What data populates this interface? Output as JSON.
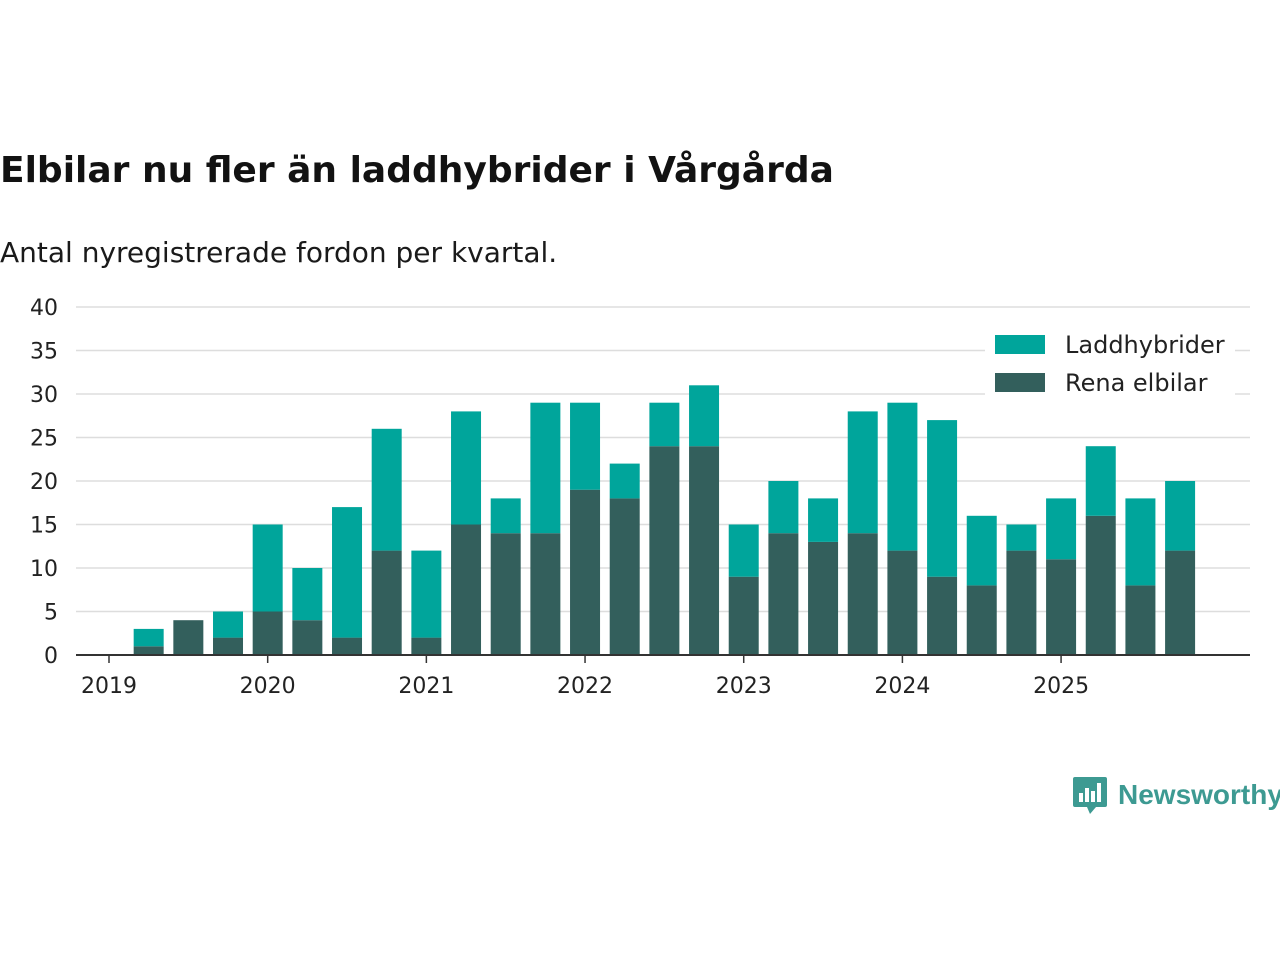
{
  "title": "Elbilar nu fler än laddhybrider i Vårgårda",
  "subtitle": "Antal nyregistrerade fordon per kvartal.",
  "brand": "Newsworthy",
  "chart_data": {
    "type": "bar",
    "stacked": true,
    "x_tick_labels": [
      "2019",
      "2020",
      "2021",
      "2022",
      "2023",
      "2024",
      "2025"
    ],
    "categories": [
      "2019 Q1",
      "2019 Q2",
      "2019 Q3",
      "2019 Q4",
      "2020 Q1",
      "2020 Q2",
      "2020 Q3",
      "2020 Q4",
      "2021 Q1",
      "2021 Q2",
      "2021 Q3",
      "2021 Q4",
      "2022 Q1",
      "2022 Q2",
      "2022 Q3",
      "2022 Q4",
      "2023 Q1",
      "2023 Q2",
      "2023 Q3",
      "2023 Q4",
      "2024 Q1",
      "2024 Q2",
      "2024 Q3",
      "2024 Q4",
      "2025 Q1",
      "2025 Q2",
      "2025 Q3",
      "2025 Q4"
    ],
    "series": [
      {
        "name": "Rena elbilar",
        "color": "#335f5c",
        "values": [
          0,
          1,
          4,
          2,
          5,
          4,
          2,
          12,
          2,
          15,
          14,
          14,
          19,
          18,
          24,
          24,
          9,
          14,
          13,
          14,
          12,
          9,
          8,
          12,
          11,
          16,
          8,
          12
        ]
      },
      {
        "name": "Laddhybrider",
        "color": "#00a59b",
        "values": [
          0,
          2,
          0,
          3,
          10,
          6,
          15,
          14,
          10,
          13,
          4,
          15,
          10,
          4,
          5,
          7,
          6,
          6,
          5,
          14,
          17,
          18,
          8,
          3,
          7,
          8,
          10,
          8
        ]
      }
    ],
    "legend_order": [
      "Laddhybrider",
      "Rena elbilar"
    ],
    "legend_position": "top-right",
    "ylim": [
      0,
      40
    ],
    "y_ticks": [
      0,
      5,
      10,
      15,
      20,
      25,
      30,
      35,
      40
    ],
    "grid": true
  }
}
